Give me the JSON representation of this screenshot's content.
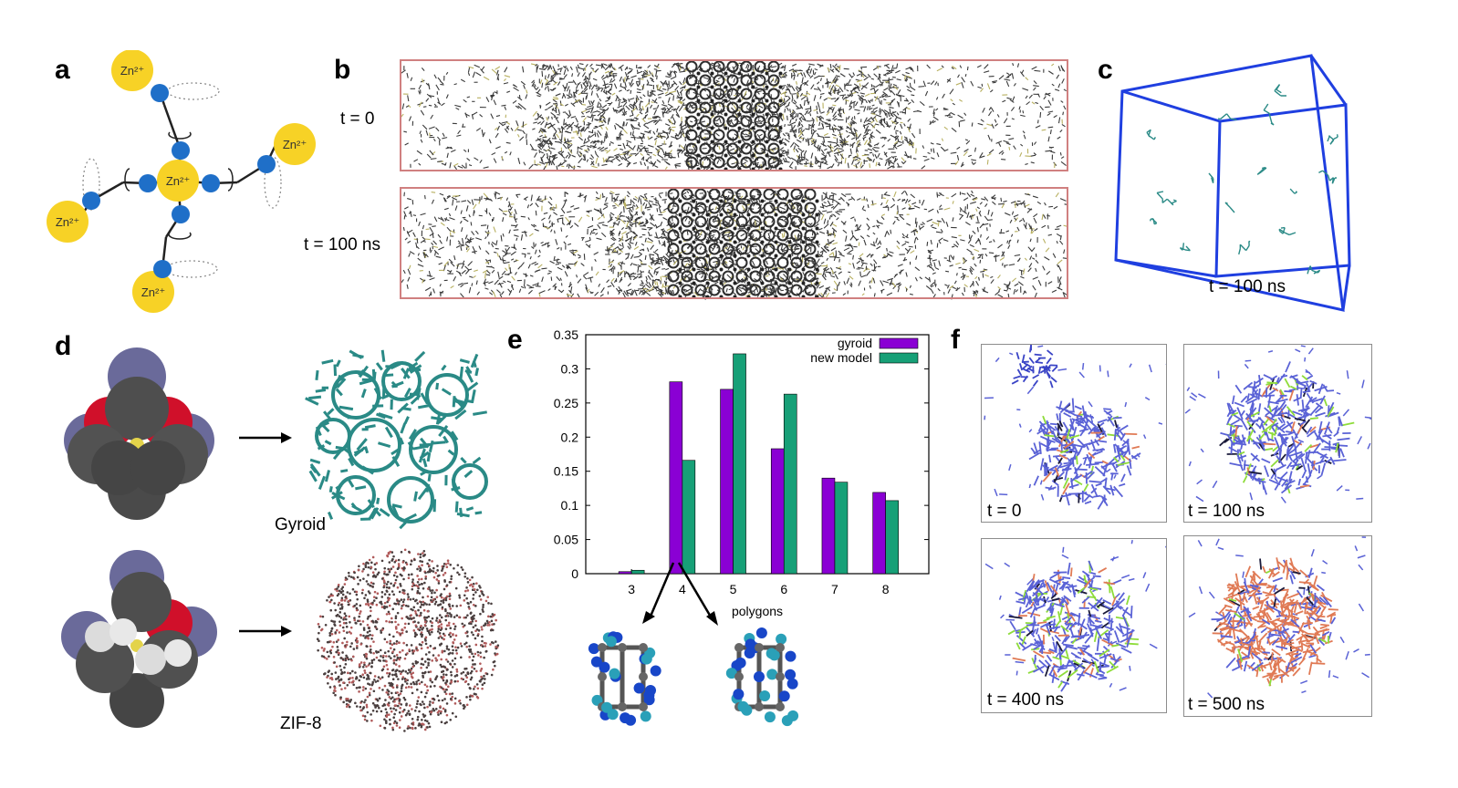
{
  "panels": {
    "a": {
      "letter": "a",
      "node_label": "Zn²⁺"
    },
    "b": {
      "letter": "b",
      "row1_time": "t = 0",
      "row2_time": "t = 100 ns"
    },
    "c": {
      "letter": "c",
      "time": "t = 100 ns"
    },
    "d": {
      "letter": "d",
      "top_label": "Gyroid",
      "bottom_label": "ZIF-8"
    },
    "e": {
      "letter": "e"
    },
    "f": {
      "letter": "f",
      "times": [
        "t = 0",
        "t = 100 ns",
        "t = 400 ns",
        "t = 500 ns"
      ]
    }
  },
  "colors": {
    "zn": "#f7d226",
    "linker": "#1f6fc8",
    "box_b": "#d08080",
    "box_c": "#1f3fe0",
    "gyroid": "#2a8a86",
    "bar_gyroid": "#8a00d4",
    "bar_new": "#17a077",
    "net_blue": "#5a62d6",
    "net_orange": "#e07a55",
    "net_green": "#8edc3a"
  },
  "chart_data": {
    "type": "bar",
    "xlabel": "polygons",
    "ylabel": "",
    "categories": [
      "3",
      "4",
      "5",
      "6",
      "7",
      "8"
    ],
    "ylim": [
      0,
      0.35
    ],
    "yticks": [
      "0",
      "0.05",
      "0.1",
      "0.15",
      "0.2",
      "0.25",
      "0.3",
      "0.35"
    ],
    "legend_position": "top-right",
    "series": [
      {
        "name": "gyroid",
        "color": "#8a00d4",
        "values": [
          0.003,
          0.281,
          0.27,
          0.183,
          0.14,
          0.119
        ]
      },
      {
        "name": "new model",
        "color": "#17a077",
        "values": [
          0.005,
          0.166,
          0.322,
          0.263,
          0.134,
          0.107
        ]
      }
    ]
  }
}
